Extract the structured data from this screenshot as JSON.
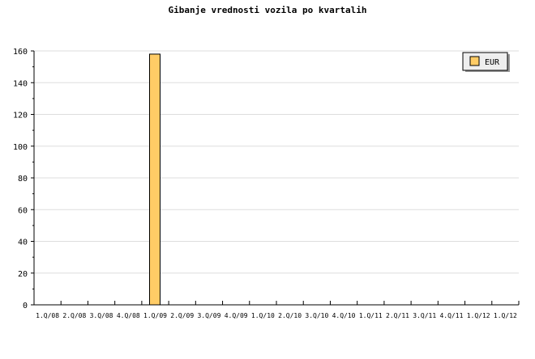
{
  "chart_data": {
    "type": "bar",
    "title": "Gibanje vrednosti vozila po kvartalih",
    "categories": [
      "1.Q/08",
      "2.Q/08",
      "3.Q/08",
      "4.Q/08",
      "1.Q/09",
      "2.Q/09",
      "3.Q/09",
      "4.Q/09",
      "1.Q/10",
      "2.Q/10",
      "3.Q/10",
      "4.Q/10",
      "1.Q/11",
      "2.Q/11",
      "3.Q/11",
      "4.Q/11",
      "1.Q/12",
      "1.Q/12"
    ],
    "series": [
      {
        "name": "EUR",
        "color": "#ffcc66",
        "values": [
          0,
          0,
          0,
          0,
          158,
          0,
          0,
          0,
          0,
          0,
          0,
          0,
          0,
          0,
          0,
          0,
          0,
          0
        ]
      }
    ],
    "ylim": [
      0,
      160
    ],
    "yticks": [
      0,
      20,
      40,
      60,
      80,
      100,
      120,
      140,
      160
    ],
    "grid": true,
    "legend": "top-right",
    "xlabel": "",
    "ylabel": ""
  }
}
